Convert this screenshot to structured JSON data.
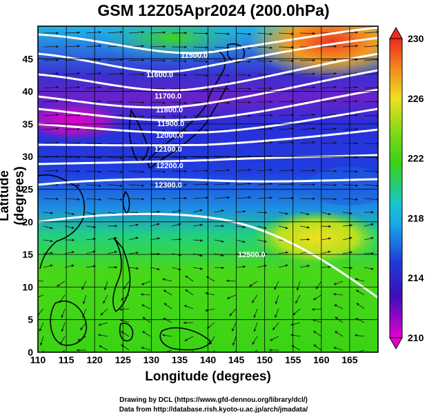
{
  "title": "GSM 12Z05Apr2024 (200.0hPa)",
  "axes": {
    "xlabel": "Longitude (degrees)",
    "ylabel": "Latitude  (degrees)",
    "x_ticks": [
      "110",
      "115",
      "120",
      "125",
      "130",
      "135",
      "140",
      "145",
      "150",
      "155",
      "160",
      "165"
    ],
    "y_ticks": [
      "0",
      "5",
      "10",
      "15",
      "20",
      "25",
      "30",
      "35",
      "40",
      "45"
    ],
    "x_range": [
      110,
      170
    ],
    "y_range": [
      0,
      50
    ]
  },
  "colorbar": {
    "labels": [
      "230",
      "226",
      "222",
      "218",
      "214",
      "210"
    ],
    "min": 210,
    "max": 230
  },
  "contour_labels": [
    "11500.0",
    "11600.0",
    "11700.0",
    "11800.0",
    "11900.0",
    "12000.0",
    "12100.0",
    "12200.0",
    "12300.0",
    "12500.0"
  ],
  "credits": {
    "line1": "Drawing by DCL (https://www.gfd-dennou.org/library/dcl/)",
    "line2": "Data from http://database.rish.kyoto-u.ac.jp/arch/jmadata/"
  },
  "colors": {
    "magenta": "#e600d4",
    "purple": "#5a1fd0",
    "blue": "#1e2fd6",
    "cyan": "#16b4e6",
    "green": "#39d214",
    "yellow": "#f0e020",
    "red": "#ee3320"
  }
}
